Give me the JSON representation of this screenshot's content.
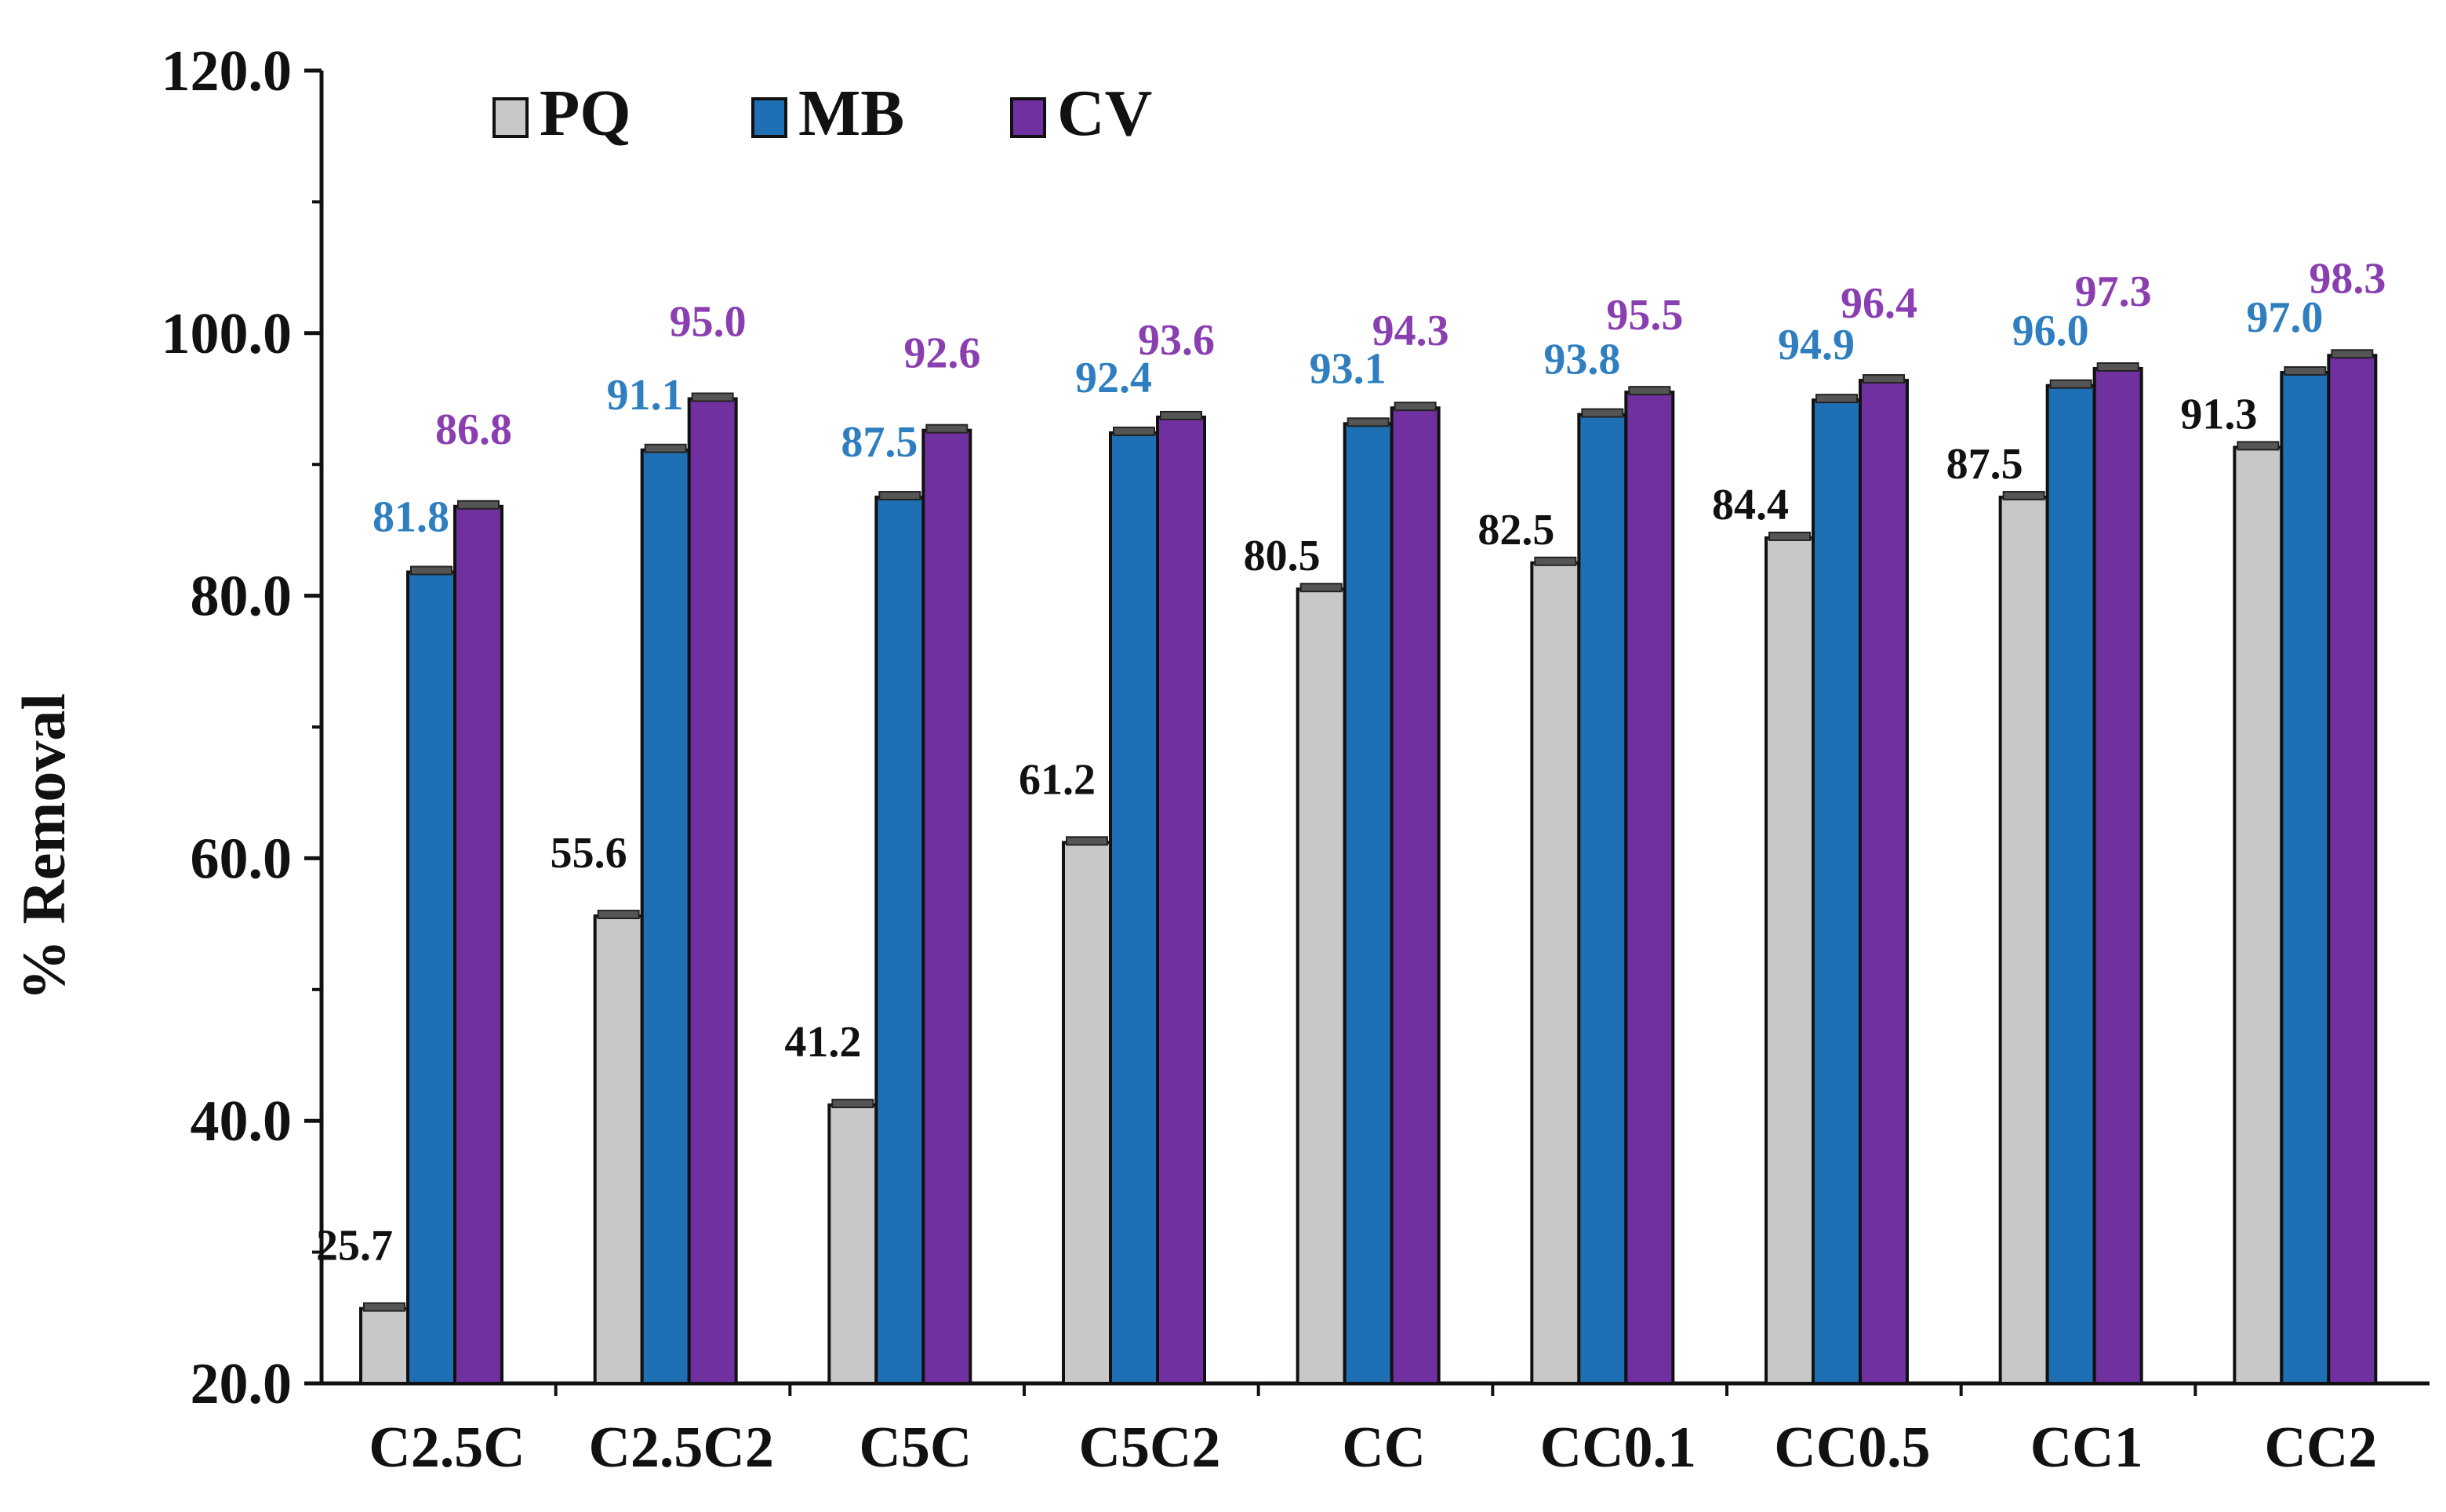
{
  "chart_data": {
    "type": "bar",
    "title": "",
    "xlabel": "",
    "ylabel": "% Removal",
    "ylim": [
      20,
      120
    ],
    "y_ticks": [
      "20.0",
      "40.0",
      "60.0",
      "80.0",
      "100.0",
      "120.0"
    ],
    "y_tick_values": [
      20,
      40,
      60,
      80,
      100,
      120
    ],
    "grid": false,
    "legend_position": "top-left",
    "categories": [
      "C2.5C",
      "C2.5C2",
      "C5C",
      "C5C2",
      "CC",
      "CC0.1",
      "CC0.5",
      "CC1",
      "CC2"
    ],
    "series": [
      {
        "name": "PQ",
        "color": "#c8c8c8",
        "label_color": "#111111",
        "values": [
          25.7,
          55.6,
          41.2,
          61.2,
          80.5,
          82.5,
          84.4,
          87.5,
          91.3
        ],
        "labels": [
          "25.7",
          "55.6",
          "41.2",
          "61.2",
          "80.5",
          "82.5",
          "84.4",
          "87.5",
          "91.3"
        ]
      },
      {
        "name": "MB",
        "color": "#1f6fb5",
        "label_color": "#2f7fc0",
        "values": [
          81.8,
          91.1,
          87.5,
          92.4,
          93.1,
          93.8,
          94.9,
          96.0,
          97.0
        ],
        "labels": [
          "81.8",
          "91.1",
          "87.5",
          "92.4",
          "93.1",
          "93.8",
          "94.9",
          "96.0",
          "97.0"
        ]
      },
      {
        "name": "CV",
        "color": "#7030a0",
        "label_color": "#8a3fb0",
        "values": [
          86.8,
          95.0,
          92.6,
          93.6,
          94.3,
          95.5,
          96.4,
          97.3,
          98.3
        ],
        "labels": [
          "86.8",
          "95.0",
          "92.6",
          "93.6",
          "94.3",
          "95.5",
          "96.4",
          "97.3",
          "98.3"
        ]
      }
    ]
  }
}
